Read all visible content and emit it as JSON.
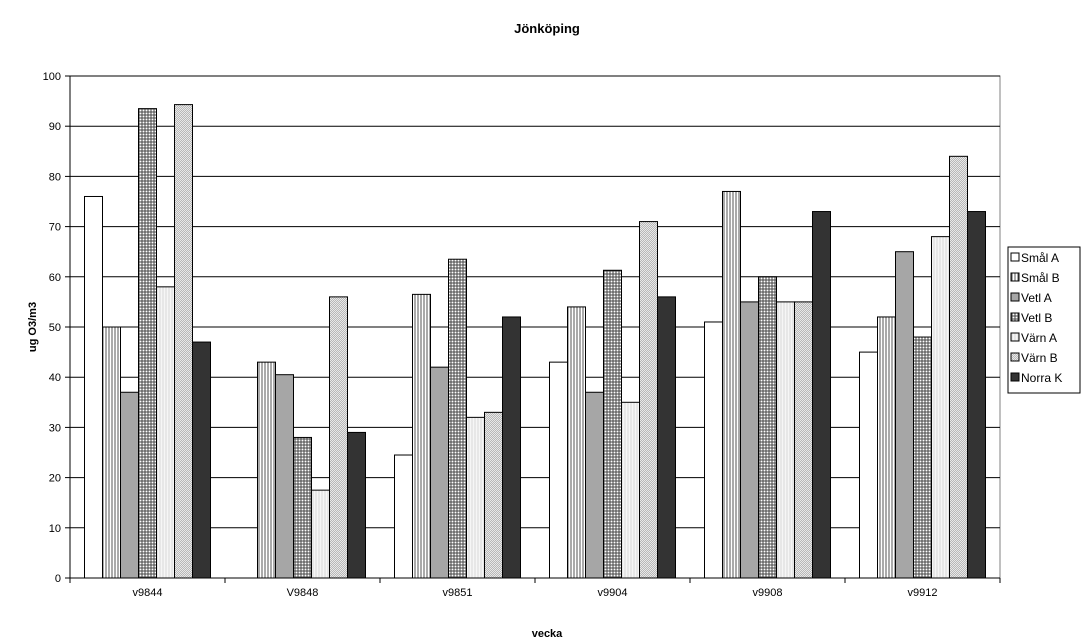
{
  "chart_data": {
    "type": "bar",
    "title": "Jönköping",
    "xlabel": "vecka",
    "ylabel": "ug O3/m3",
    "ylim": [
      0,
      100
    ],
    "yticks": [
      0,
      10,
      20,
      30,
      40,
      50,
      60,
      70,
      80,
      90,
      100
    ],
    "grid": true,
    "legend_position": "right",
    "categories": [
      "v9844",
      "V9848",
      "v9851",
      "v9904",
      "v9908",
      "v9912"
    ],
    "series": [
      {
        "name": "Smål A",
        "values": [
          76,
          0,
          24.5,
          43,
          51,
          45
        ],
        "pattern": "white"
      },
      {
        "name": "Smål B",
        "values": [
          50,
          43,
          56.5,
          54,
          77,
          52
        ],
        "pattern": "vlines"
      },
      {
        "name": "Vetl A",
        "values": [
          37,
          40.5,
          42,
          37,
          55,
          65
        ],
        "pattern": "gray"
      },
      {
        "name": "Vetl B",
        "values": [
          93.5,
          28,
          63.5,
          61.3,
          60,
          48
        ],
        "pattern": "grid"
      },
      {
        "name": "Värn A",
        "values": [
          58,
          17.5,
          32,
          35,
          55,
          68
        ],
        "pattern": "light"
      },
      {
        "name": "Värn B",
        "values": [
          94.3,
          56,
          33,
          71,
          55,
          84
        ],
        "pattern": "check"
      },
      {
        "name": "Norra K",
        "values": [
          47,
          29,
          52,
          56,
          73,
          73
        ],
        "pattern": "dark"
      }
    ]
  }
}
